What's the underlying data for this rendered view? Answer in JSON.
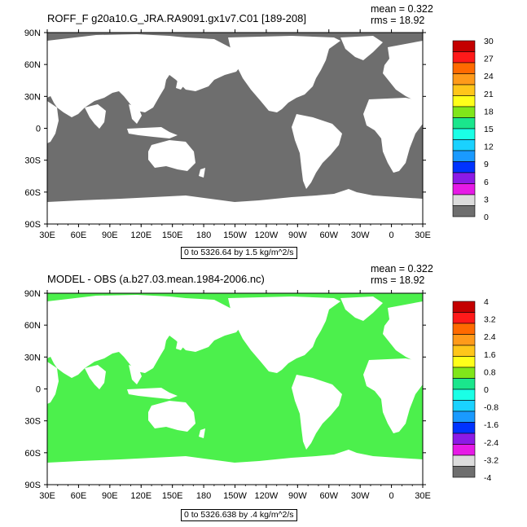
{
  "panels": [
    {
      "title": "ROFF_F g20a10.G_JRA.RA9091.gx1v7.C01 [189-208]",
      "mean": "mean = 0.322",
      "rms": "rms = 18.92",
      "subtitle": "0 to 5326.64 by 1.5 kg/m^2/s",
      "land_color": "#6e6e6e",
      "colorbar": {
        "labels": [
          "30",
          "27",
          "24",
          "21",
          "18",
          "15",
          "12",
          "9",
          "6",
          "3",
          "0"
        ],
        "colors": [
          "#c40000",
          "#ff1a1a",
          "#ff6a00",
          "#ff9a1a",
          "#ffc61a",
          "#ffff1a",
          "#80e61a",
          "#1ae68c",
          "#1affe6",
          "#1ad2ff",
          "#1a9aff",
          "#0033ff",
          "#8c1ae6",
          "#e61ae6",
          "#dcdcdc",
          "#6e6e6e"
        ]
      }
    },
    {
      "title": "MODEL - OBS (a.b27.03.mean.1984-2006.nc)",
      "mean": "mean = 0.322",
      "rms": "rms = 18.92",
      "subtitle": "0 to 5326.638 by .4 kg/m^2/s",
      "land_color": "#4cf04c",
      "colorbar": {
        "labels": [
          "4",
          "3.2",
          "2.4",
          "1.6",
          "0.8",
          "0",
          "-0.8",
          "-1.6",
          "-2.4",
          "-3.2",
          "-4"
        ],
        "colors": [
          "#c40000",
          "#ff1a1a",
          "#ff6a00",
          "#ff9a1a",
          "#ffc61a",
          "#ffff1a",
          "#80e61a",
          "#1ae68c",
          "#1affe6",
          "#1ad2ff",
          "#1a9aff",
          "#0033ff",
          "#8c1ae6",
          "#e61ae6",
          "#dcdcdc",
          "#6e6e6e"
        ]
      }
    }
  ],
  "axes": {
    "lat_labels": [
      "90N",
      "60N",
      "30N",
      "0",
      "30S",
      "60S",
      "90S"
    ],
    "lon_labels": [
      "30E",
      "60E",
      "90E",
      "120E",
      "150E",
      "180",
      "150W",
      "120W",
      "90W",
      "60W",
      "30W",
      "0",
      "30E"
    ]
  }
}
